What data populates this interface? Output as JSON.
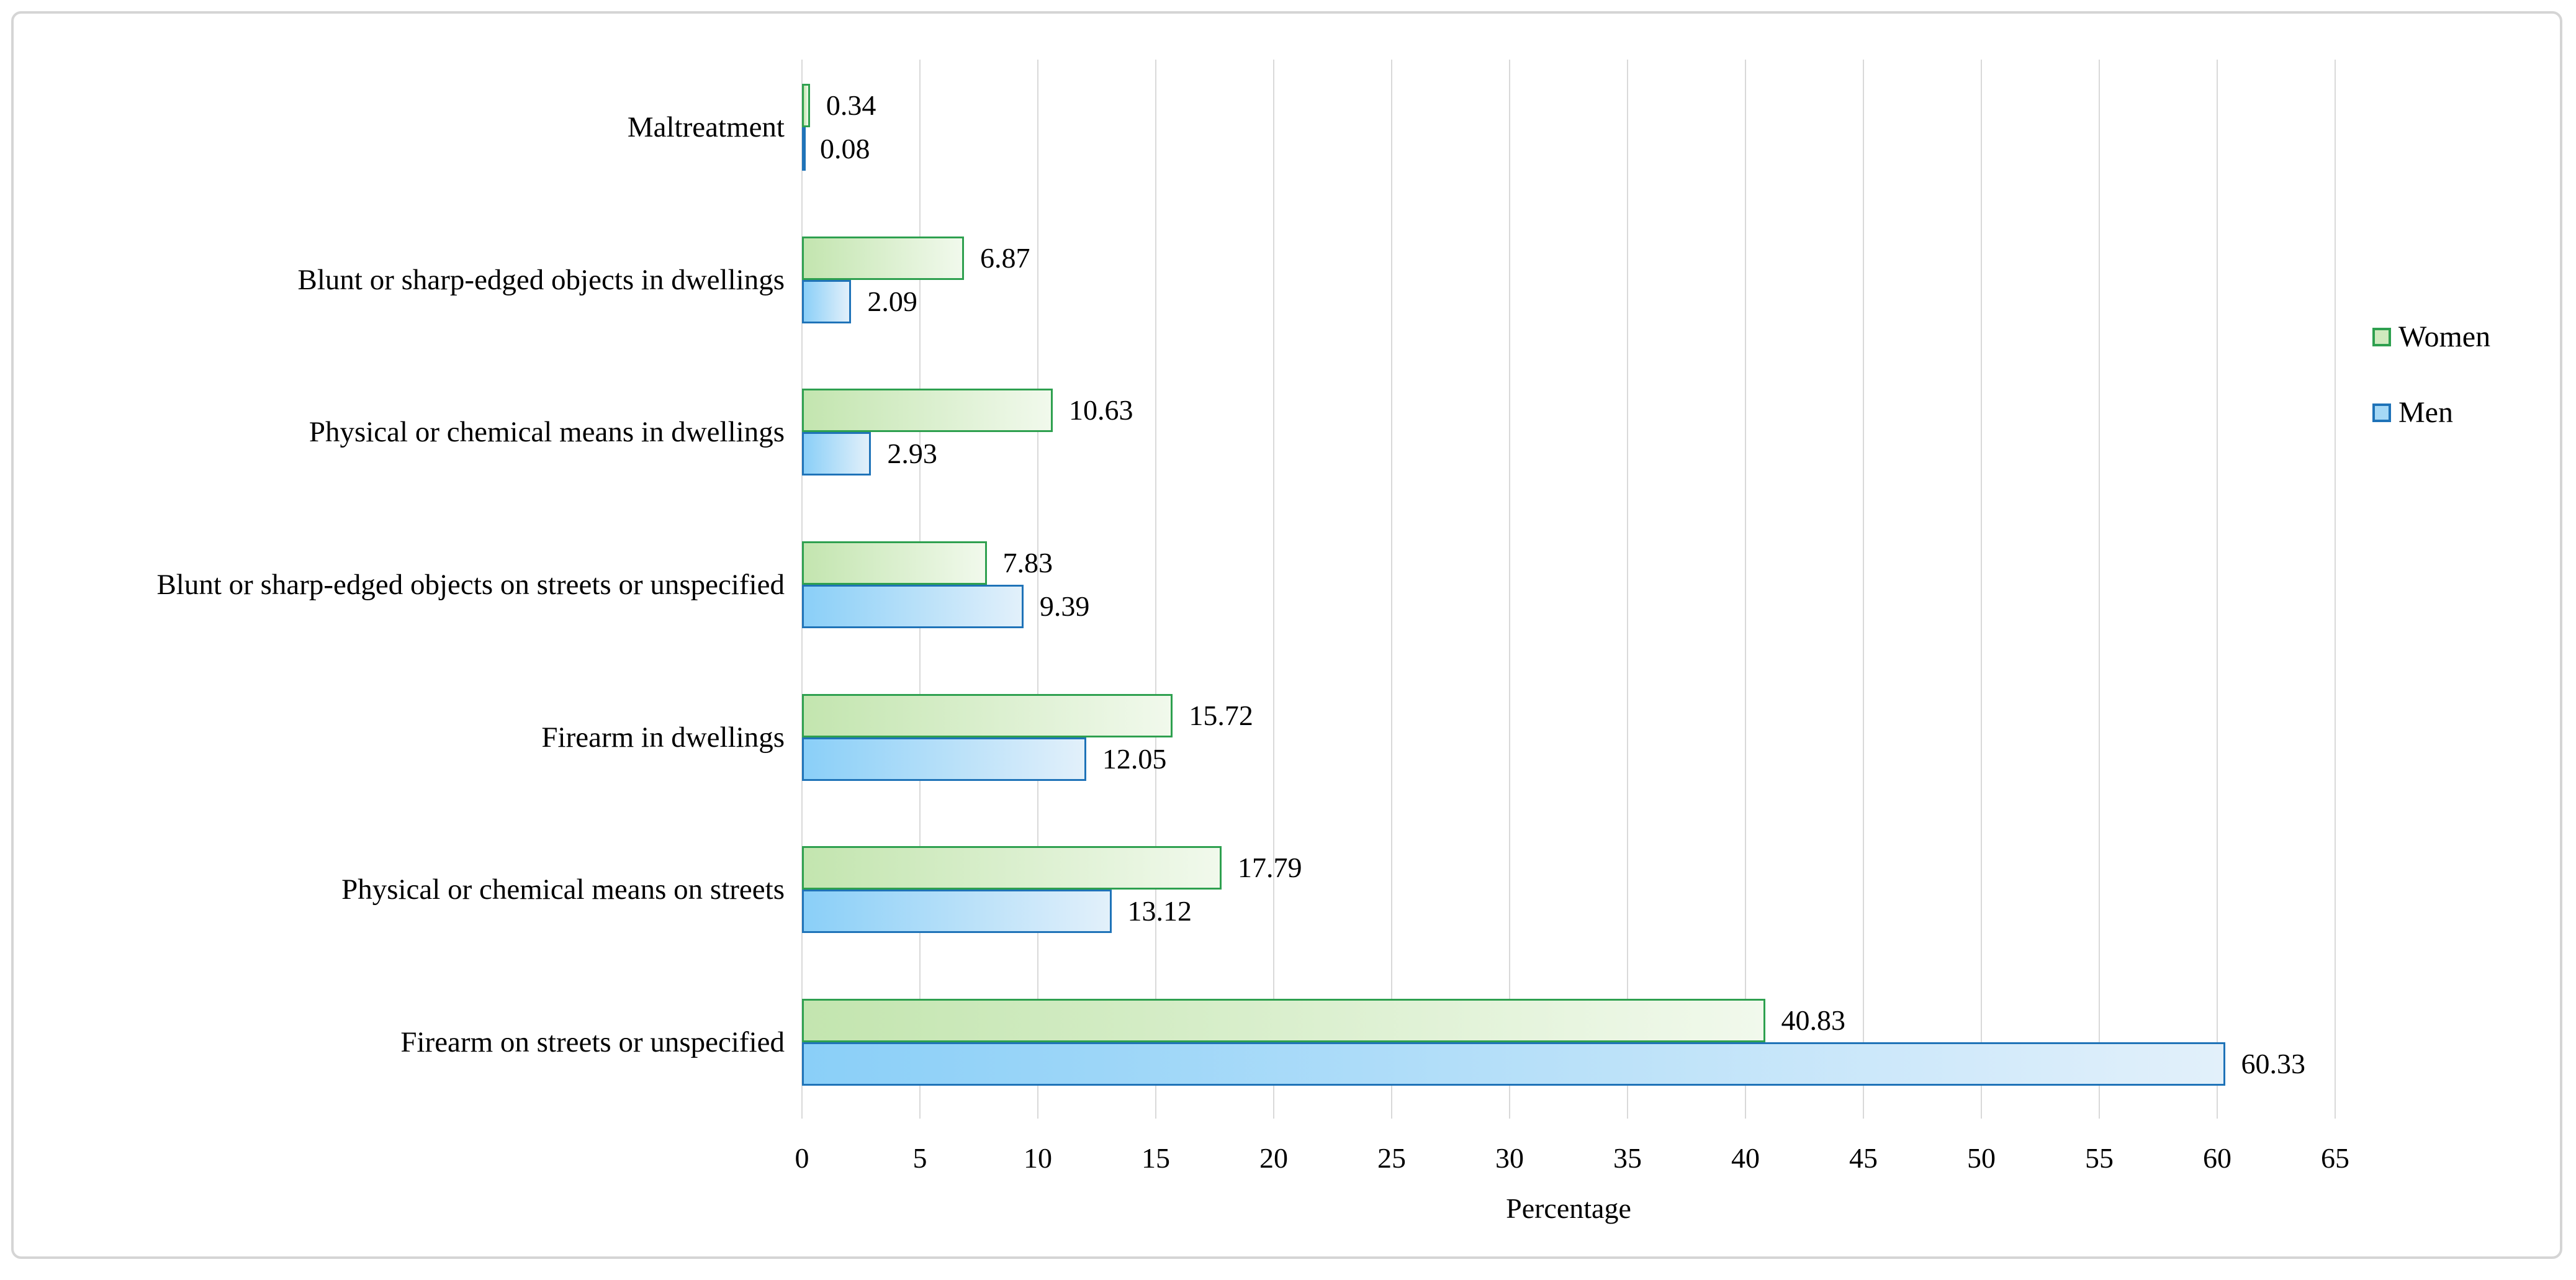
{
  "figure": {
    "background_color": "#ffffff",
    "card_border_color": "#d5d5d5"
  },
  "chart_data": {
    "type": "bar",
    "orientation": "horizontal",
    "title": "",
    "xlabel": "Percentage",
    "ylabel": "",
    "xlim": [
      0,
      65
    ],
    "xticks": [
      0,
      5,
      10,
      15,
      20,
      25,
      30,
      35,
      40,
      45,
      50,
      55,
      60,
      65
    ],
    "grid": true,
    "gridline_color": "#d9d9d9",
    "legend_position": "right",
    "value_labels_shown": true,
    "categories_top_to_bottom": [
      "Maltreatment",
      "Blunt or sharp-edged objects in dwellings",
      "Physical or chemical means in dwellings",
      "Blunt or sharp-edged objects on streets or unspecified",
      "Firearm in dwellings",
      "Physical or chemical means on streets",
      "Firearm on streets or unspecified"
    ],
    "series": [
      {
        "name": "Women",
        "border_color": "#2ea04f",
        "fill_gradient": [
          "#c3e5af",
          "#f1f9ec"
        ],
        "values": [
          0.34,
          6.87,
          10.63,
          7.83,
          15.72,
          17.79,
          40.83
        ]
      },
      {
        "name": "Men",
        "border_color": "#1f73b8",
        "fill_gradient": [
          "#8acff8",
          "#e2f0fa"
        ],
        "values": [
          0.08,
          2.09,
          2.93,
          9.39,
          12.05,
          13.12,
          60.33
        ]
      }
    ],
    "value_label_format": "0.00"
  },
  "legend": {
    "women_label": "Women",
    "men_label": "Men"
  }
}
